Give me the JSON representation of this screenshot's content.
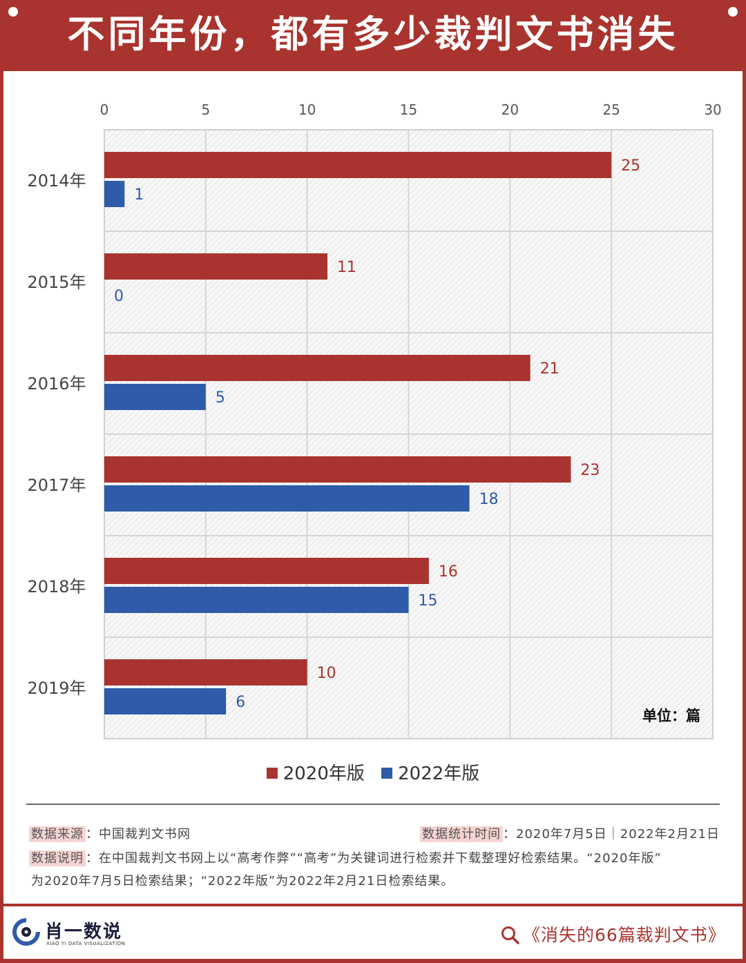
{
  "header": {
    "title": "不同年份，都有多少裁判文书消失"
  },
  "colors": {
    "series_2020": "#a9332e",
    "series_2022": "#2f5ba8",
    "frame": "#a9332e"
  },
  "chart_data": {
    "type": "bar",
    "orientation": "horizontal",
    "categories": [
      "2014年",
      "2015年",
      "2016年",
      "2017年",
      "2018年",
      "2019年"
    ],
    "series": [
      {
        "name": "2020年版",
        "values": [
          25,
          11,
          21,
          23,
          16,
          10
        ]
      },
      {
        "name": "2022年版",
        "values": [
          1,
          0,
          5,
          18,
          15,
          6
        ]
      }
    ],
    "xlim": [
      0,
      30
    ],
    "xticks": [
      0,
      5,
      10,
      15,
      20,
      25,
      30
    ],
    "x_axis_position": "top",
    "unit": "单位：篇",
    "grid": true,
    "legend_position": "bottom-center",
    "data_labels": true
  },
  "notes": {
    "source_label": "数据来源",
    "source_value": "：中国裁判文书网",
    "stat_time_label": "数据统计时间",
    "stat_time_value": "：2020年7月5日｜2022年2月21日",
    "desc_label": "数据说明",
    "desc_line1": "：在中国裁判文书网上以“高考作弊”“高考”为关键词进行检索并下载整理好检索结果。“2020年版”",
    "desc_line2": "为2020年7月5日检索结果；“2022年版”为2022年2月21日检索结果。"
  },
  "footer": {
    "logo_icon": "xiaoyi-logo-icon",
    "logo_cn": "肖一数说",
    "logo_en": "XIAO YI DATA VISUALIZATION",
    "search_icon": "search-icon",
    "book_title": "《消失的66篇裁判文书》"
  }
}
